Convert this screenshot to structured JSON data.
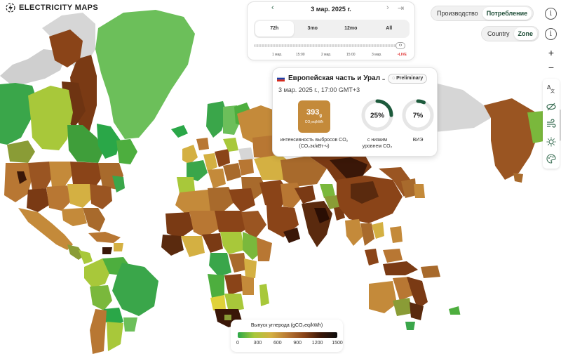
{
  "app": {
    "logo_text": "ELECTRICITY MAPS"
  },
  "time_panel": {
    "date": "3 мар. 2025 г.",
    "tabs": [
      {
        "label": "72h",
        "active": true
      },
      {
        "label": "3mo",
        "active": false
      },
      {
        "label": "12mo",
        "active": false
      },
      {
        "label": "All",
        "active": false
      }
    ],
    "ticks": [
      "1 мар.",
      "15:00",
      "2 мар.",
      "15:00",
      "3 мар."
    ],
    "live_label": "LIVE"
  },
  "mode_toggle": {
    "options": [
      "Производство",
      "Потребление"
    ],
    "selected": "Потребление"
  },
  "area_toggle": {
    "options": [
      "Country",
      "Zone"
    ],
    "selected": "Zone"
  },
  "controls": {
    "zoom_in": "+",
    "zoom_out": "−"
  },
  "card": {
    "zone_name": "Европейская часть и Урал ...",
    "badge": "Preliminary",
    "timestamp": "3 мар. 2025 г., 17:00 GMT+3",
    "carbon_intensity": {
      "value": "393",
      "unit_sup": "g",
      "unit": "CO₂eq/kWh",
      "label_line1": "интенсивность выбросов CO₂",
      "label_line2": "(CO₂эк/кВт-ч)",
      "color": "#c48a3a"
    },
    "low_carbon": {
      "value_text": "25%",
      "fraction": 0.25,
      "label_line1": "с низким",
      "label_line2": "уровнем CO₂"
    },
    "renewable": {
      "value_text": "7%",
      "fraction": 0.07,
      "label_line1": "ВИЭ"
    }
  },
  "legend": {
    "title": "Выпуск углерода (gCO₂eq/kWh)",
    "ticks": [
      "0",
      "300",
      "600",
      "900",
      "1200",
      "1500"
    ],
    "colors": [
      "#2aa748",
      "#a8c83a",
      "#d4b042",
      "#b87733",
      "#8a4418",
      "#3a1708",
      "#0e0e0e"
    ]
  },
  "colors": {
    "accent": "#1d4d36",
    "live": "#e03030"
  }
}
